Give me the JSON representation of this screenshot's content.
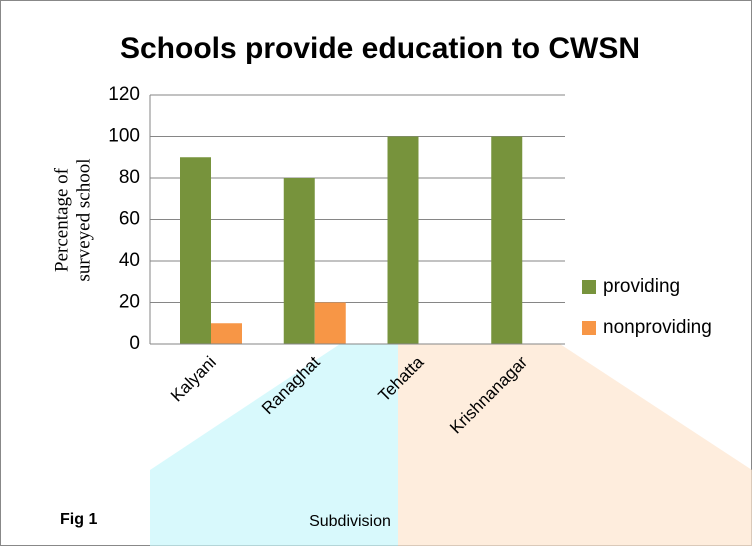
{
  "chart_data": {
    "type": "bar",
    "title": "Schools provide education to CWSN",
    "categories": [
      "Kalyani",
      "Ranaghat",
      "Tehatta",
      "Krishnanagar"
    ],
    "series": [
      {
        "name": "providing",
        "color": "#77933c",
        "values": [
          90,
          80,
          100,
          100
        ]
      },
      {
        "name": "nonproviding",
        "color": "#f79646",
        "values": [
          10,
          20,
          0,
          0
        ]
      }
    ],
    "ylim": [
      0,
      120
    ],
    "yticks": [
      0,
      20,
      40,
      60,
      80,
      100,
      120
    ],
    "grid": true,
    "y_label": [
      "Percentage of",
      "surveyed school"
    ],
    "x_label": "Subdivision",
    "annotation": "Fig 1",
    "legend": "right"
  }
}
